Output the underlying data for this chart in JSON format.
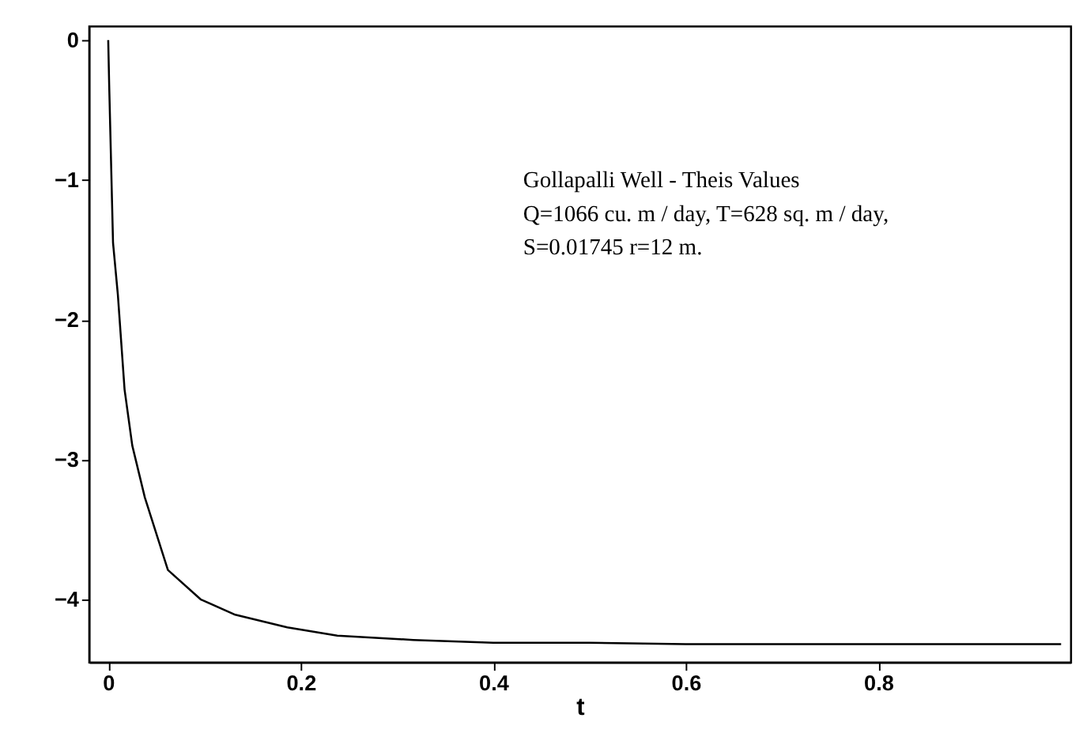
{
  "chart_data": {
    "type": "line",
    "xlabel": "t",
    "x": [
      0,
      0.001,
      0.005,
      0.01,
      0.017,
      0.025,
      0.038,
      0.062,
      0.096,
      0.132,
      0.186,
      0.238,
      0.317,
      0.4,
      0.5,
      0.6,
      0.7,
      0.8,
      0.9,
      0.99
    ],
    "series": [
      {
        "color": "#000000",
        "values": [
          0,
          -0.32,
          -1.45,
          -1.82,
          -2.5,
          -2.9,
          -3.27,
          -3.79,
          -4.0,
          -4.11,
          -4.2,
          -4.26,
          -4.29,
          -4.31,
          -4.31,
          -4.32,
          -4.32,
          -4.32,
          -4.32,
          -4.32
        ]
      }
    ],
    "xlim": [
      -0.02,
      1.0
    ],
    "xticks": [
      0,
      0.2,
      0.4,
      0.6,
      0.8
    ],
    "ylim": [
      -4.45,
      0.1
    ],
    "yticks": [
      0,
      -1,
      -2,
      -3,
      -4
    ],
    "grid": false,
    "marker": "none",
    "line_style": "solid",
    "annotations": [
      "Gollapalli Well - Theis Values",
      "Q=1066 cu. m / day, T=628 sq. m / day,",
      "S=0.01745 r=12 m."
    ]
  }
}
